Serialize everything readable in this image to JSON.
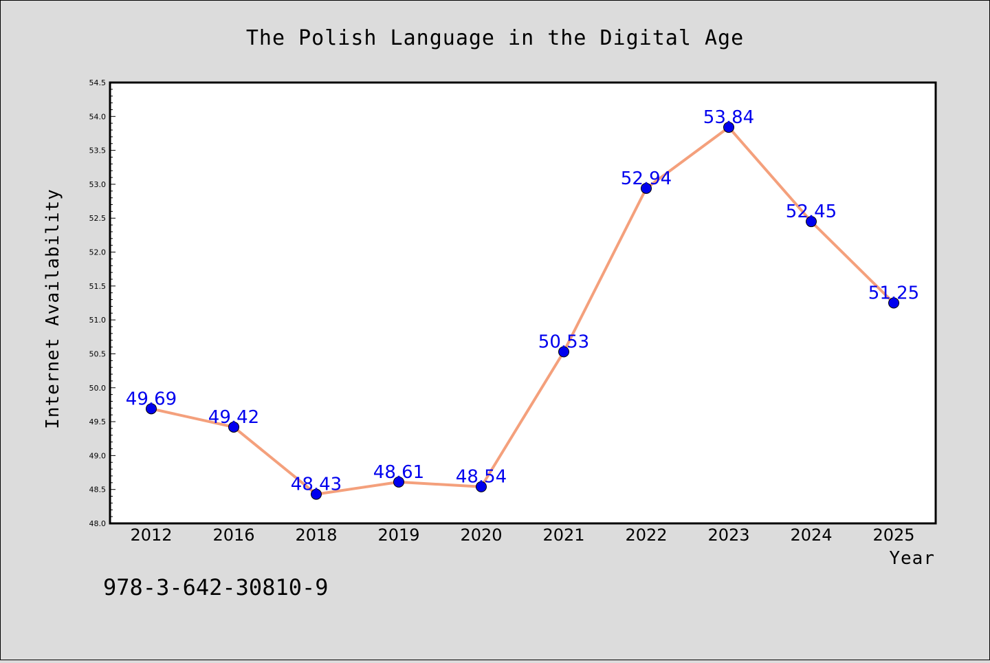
{
  "colors": {
    "background": "#dcdcdc",
    "plot_background": "#ffffff",
    "line": "#f4a07c",
    "marker": "#0000ee",
    "data_label": "#0000ee"
  },
  "isbn": "978-3-642-30810-9",
  "chart_data": {
    "type": "line",
    "title": "The Polish Language in the Digital Age",
    "xlabel": "Year",
    "ylabel": "Internet Availability",
    "categories": [
      "2012",
      "2016",
      "2018",
      "2019",
      "2020",
      "2021",
      "2022",
      "2023",
      "2024",
      "2025"
    ],
    "series": [
      {
        "values": [
          49.69,
          49.42,
          48.43,
          48.61,
          48.54,
          50.53,
          52.94,
          53.84,
          52.45,
          51.25
        ],
        "labels": [
          "49.69",
          "49.42",
          "48.43",
          "48.61",
          "48.54",
          "50.53",
          "52.94",
          "53.84",
          "52.45",
          "51.25"
        ]
      }
    ],
    "ylim": [
      48.0,
      54.5
    ],
    "yticks": [
      "48.0",
      "48.5",
      "49.0",
      "49.5",
      "50.0",
      "50.5",
      "51.0",
      "51.5",
      "52.0",
      "52.5",
      "53.0",
      "53.5",
      "54.0",
      "54.5"
    ],
    "grid": false,
    "legend": "none"
  }
}
